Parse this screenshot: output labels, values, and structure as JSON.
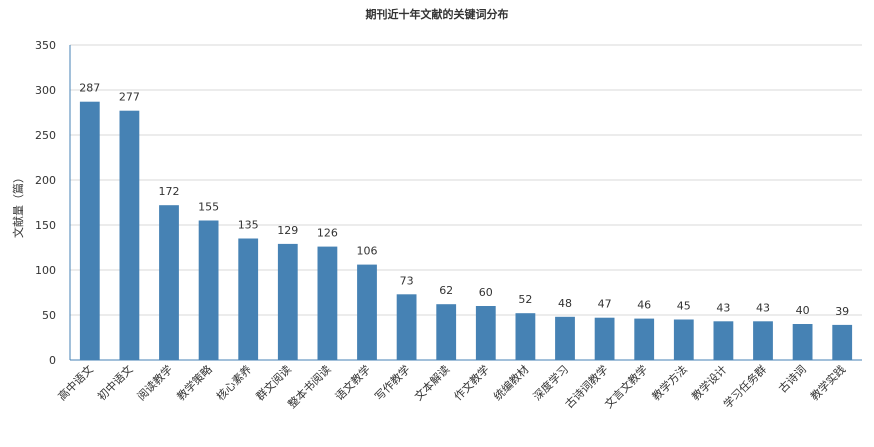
{
  "chart_data": {
    "type": "bar",
    "title": "期刊近十年文献的关键词分布",
    "ylabel": "文献量（篇）",
    "xlabel": "",
    "ylim": [
      0,
      350
    ],
    "yticks": [
      0,
      50,
      100,
      150,
      200,
      250,
      300,
      350
    ],
    "grid": true,
    "categories": [
      "高中语文",
      "初中语文",
      "阅读教学",
      "教学策略",
      "核心素养",
      "群文阅读",
      "整本书阅读",
      "语文教学",
      "写作教学",
      "文本解读",
      "作文教学",
      "统编教材",
      "深度学习",
      "古诗词教学",
      "文言文教学",
      "教学方法",
      "教学设计",
      "学习任务群",
      "古诗词",
      "教学实践"
    ],
    "values": [
      287,
      277,
      172,
      155,
      135,
      129,
      126,
      106,
      73,
      62,
      60,
      52,
      48,
      47,
      46,
      45,
      43,
      43,
      40,
      39
    ],
    "colors": {
      "bar": "#4682b4",
      "grid": "#d9d9d9",
      "axis": "#4682b4",
      "text": "#333333"
    }
  }
}
